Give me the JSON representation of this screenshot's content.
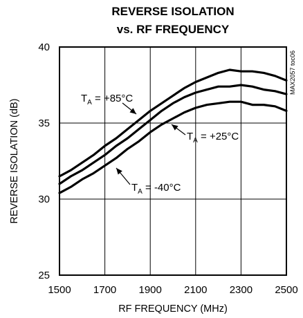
{
  "chart_data": {
    "type": "line",
    "title": "REVERSE ISOLATION",
    "subtitle": "vs. RF FREQUENCY",
    "xlabel": "RF FREQUENCY (MHz)",
    "ylabel": "REVERSE ISOLATION (dB)",
    "xlim": [
      1500,
      2500
    ],
    "ylim": [
      25,
      40
    ],
    "xticks": [
      1500,
      1700,
      1900,
      2100,
      2300,
      2500
    ],
    "yticks": [
      25,
      30,
      35,
      40
    ],
    "grid": true,
    "side_code": "MAX2057 toc06",
    "series": [
      {
        "name": "TA = +85°C",
        "label_main": "T",
        "label_sub": "A",
        "label_rest": " = +85°C",
        "x": [
          1500,
          1550,
          1600,
          1650,
          1700,
          1750,
          1800,
          1850,
          1900,
          1950,
          2000,
          2050,
          2100,
          2150,
          2200,
          2250,
          2300,
          2350,
          2400,
          2450,
          2500
        ],
        "y": [
          31.5,
          31.9,
          32.4,
          32.9,
          33.5,
          34.0,
          34.6,
          35.2,
          35.8,
          36.3,
          36.8,
          37.3,
          37.7,
          38.0,
          38.3,
          38.5,
          38.4,
          38.4,
          38.3,
          38.1,
          37.8
        ]
      },
      {
        "name": "TA = +25°C",
        "label_main": "T",
        "label_sub": "A",
        "label_rest": " = +25°C",
        "x": [
          1500,
          1550,
          1600,
          1650,
          1700,
          1750,
          1800,
          1850,
          1900,
          1950,
          2000,
          2050,
          2100,
          2150,
          2200,
          2250,
          2300,
          2350,
          2400,
          2450,
          2500
        ],
        "y": [
          31.0,
          31.5,
          31.9,
          32.4,
          32.9,
          33.5,
          34.0,
          34.6,
          35.2,
          35.8,
          36.3,
          36.7,
          37.0,
          37.2,
          37.4,
          37.4,
          37.5,
          37.4,
          37.2,
          37.1,
          36.9
        ]
      },
      {
        "name": "TA = -40°C",
        "label_main": "T",
        "label_sub": "A",
        "label_rest": " = -40°C",
        "x": [
          1500,
          1550,
          1600,
          1650,
          1700,
          1750,
          1800,
          1850,
          1900,
          1950,
          2000,
          2050,
          2100,
          2150,
          2200,
          2250,
          2300,
          2350,
          2400,
          2450,
          2500
        ],
        "y": [
          30.4,
          30.8,
          31.3,
          31.7,
          32.2,
          32.7,
          33.3,
          33.8,
          34.4,
          34.9,
          35.3,
          35.7,
          36.0,
          36.2,
          36.3,
          36.4,
          36.4,
          36.2,
          36.2,
          36.1,
          35.8
        ]
      }
    ]
  }
}
